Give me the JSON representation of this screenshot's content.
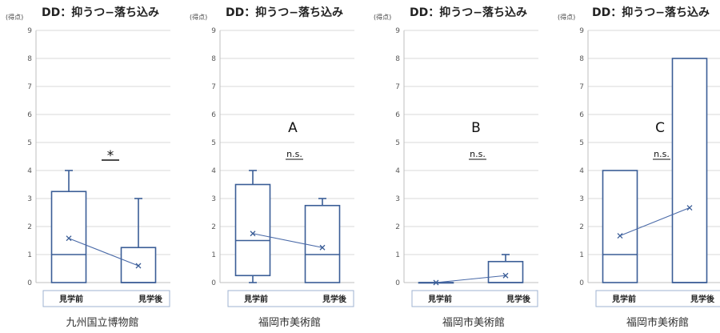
{
  "colors": {
    "box": "#3a5d96",
    "grid": "#d9d9d9",
    "axis": "#bfbfbf",
    "mean_line": "#4a6aa8"
  },
  "chart_data": [
    {
      "type": "box",
      "title": "DD：抑うつ−落ち込み",
      "ylabel": "(得点)",
      "ylim": [
        0,
        9
      ],
      "yticks": [
        "0",
        "1",
        "2",
        "3",
        "4",
        "5",
        "6",
        "7",
        "8",
        "9"
      ],
      "grid": true,
      "categories": [
        "見学前",
        "見学後"
      ],
      "boxes": [
        {
          "category": "見学前",
          "min": 0,
          "q1": 0,
          "median": 1,
          "q3": 3.25,
          "max": 4,
          "mean": 1.58
        },
        {
          "category": "見学後",
          "min": 0,
          "q1": 0,
          "median": 0,
          "q3": 1.25,
          "max": 3,
          "mean": 0.6
        }
      ],
      "group_label": "",
      "significance": "*",
      "footer": "九州国立博物館"
    },
    {
      "type": "box",
      "title": "DD：抑うつ−落ち込み",
      "ylabel": "(得点)",
      "ylim": [
        0,
        9
      ],
      "yticks": [
        "0",
        "1",
        "2",
        "3",
        "4",
        "5",
        "6",
        "7",
        "8",
        "9"
      ],
      "grid": true,
      "categories": [
        "見学前",
        "見学後"
      ],
      "boxes": [
        {
          "category": "見学前",
          "min": 0,
          "q1": 0.25,
          "median": 1.5,
          "q3": 3.5,
          "max": 4,
          "mean": 1.75
        },
        {
          "category": "見学後",
          "min": 0,
          "q1": 0,
          "median": 1,
          "q3": 2.75,
          "max": 3,
          "mean": 1.25
        }
      ],
      "group_label": "A",
      "significance": "n.s.",
      "footer": "福岡市美術館"
    },
    {
      "type": "box",
      "title": "DD：抑うつ−落ち込み",
      "ylabel": "(得点)",
      "ylim": [
        0,
        9
      ],
      "yticks": [
        "0",
        "1",
        "2",
        "3",
        "4",
        "5",
        "6",
        "7",
        "8",
        "9"
      ],
      "grid": true,
      "categories": [
        "見学前",
        "見学後"
      ],
      "boxes": [
        {
          "category": "見学前",
          "min": 0,
          "q1": 0,
          "median": 0,
          "q3": 0,
          "max": 0,
          "mean": 0
        },
        {
          "category": "見学後",
          "min": 0,
          "q1": 0,
          "median": 0,
          "q3": 0.75,
          "max": 1,
          "mean": 0.25
        }
      ],
      "group_label": "B",
      "significance": "n.s.",
      "footer": "福岡市美術館"
    },
    {
      "type": "box",
      "title": "DD：抑うつ−落ち込み",
      "ylabel": "(得点)",
      "ylim": [
        0,
        9
      ],
      "yticks": [
        "0",
        "1",
        "2",
        "3",
        "4",
        "5",
        "6",
        "7",
        "8",
        "9"
      ],
      "grid": true,
      "categories": [
        "見学前",
        "見学後"
      ],
      "boxes": [
        {
          "category": "見学前",
          "min": 0,
          "q1": 0,
          "median": 1,
          "q3": 4,
          "max": 4,
          "mean": 1.67
        },
        {
          "category": "見学後",
          "min": 0,
          "q1": 0,
          "median": 0,
          "q3": 8,
          "max": 8,
          "mean": 2.67
        }
      ],
      "group_label": "C",
      "significance": "n.s.",
      "footer": "福岡市美術館"
    }
  ]
}
